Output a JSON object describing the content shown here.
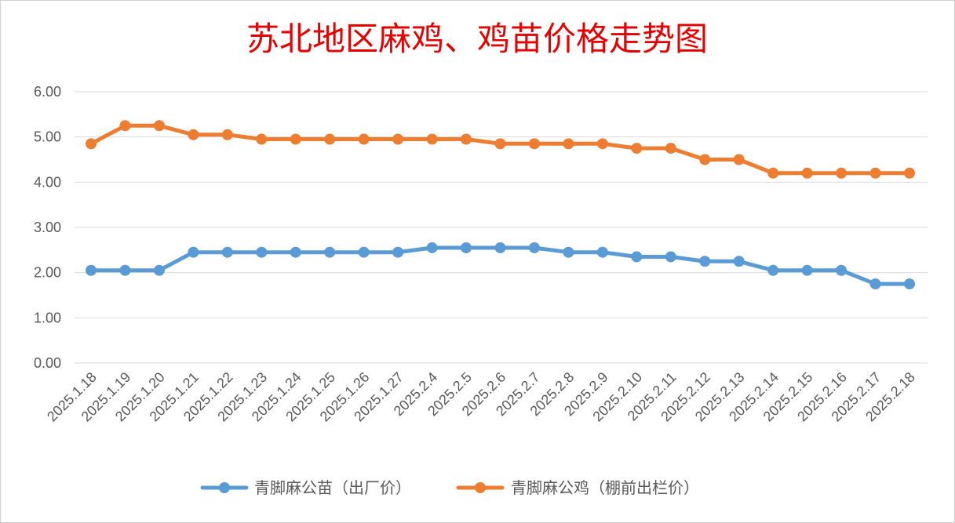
{
  "chart_data": {
    "type": "line",
    "title": "苏北地区麻鸡、鸡苗价格走势图",
    "title_color": "#e60000",
    "categories": [
      "2025.1.18",
      "2025.1.19",
      "2025.1.20",
      "2025.1.21",
      "2025.1.22",
      "2025.1.23",
      "2025.1.24",
      "2025.1.25",
      "2025.1.26",
      "2025.1.27",
      "2025.2.4",
      "2025.2.5",
      "2025.2.6",
      "2025.2.7",
      "2025.2.8",
      "2025.2.9",
      "2025.2.10",
      "2025.2.11",
      "2025.2.12",
      "2025.2.13",
      "2025.2.14",
      "2025.2.15",
      "2025.2.16",
      "2025.2.17",
      "2025.2.18"
    ],
    "series": [
      {
        "name": "青脚麻公苗（出厂价）",
        "color": "#5b9bd5",
        "values": [
          2.05,
          2.05,
          2.05,
          2.45,
          2.45,
          2.45,
          2.45,
          2.45,
          2.45,
          2.45,
          2.55,
          2.55,
          2.55,
          2.55,
          2.45,
          2.45,
          2.35,
          2.35,
          2.25,
          2.25,
          2.05,
          2.05,
          2.05,
          1.75,
          1.75
        ]
      },
      {
        "name": "青脚麻公鸡（棚前出栏价）",
        "color": "#ed7d31",
        "values": [
          4.85,
          5.25,
          5.25,
          5.05,
          5.05,
          4.95,
          4.95,
          4.95,
          4.95,
          4.95,
          4.95,
          4.95,
          4.85,
          4.85,
          4.85,
          4.85,
          4.75,
          4.75,
          4.5,
          4.5,
          4.2,
          4.2,
          4.2,
          4.2,
          4.2
        ]
      }
    ],
    "ylim": [
      0,
      6
    ],
    "yticks": [
      "0.00",
      "1.00",
      "2.00",
      "3.00",
      "4.00",
      "5.00",
      "6.00"
    ],
    "grid": true,
    "gridline_color": "#d9d9d9",
    "legend_position": "bottom"
  }
}
